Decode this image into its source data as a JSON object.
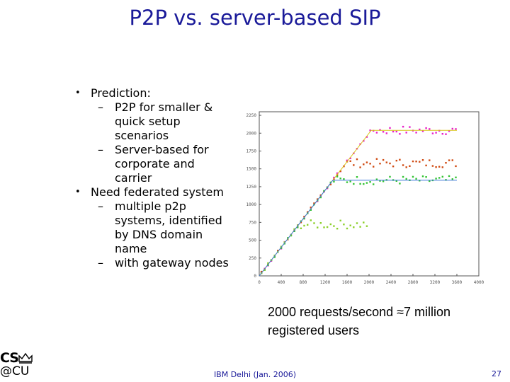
{
  "slide": {
    "title": "P2P vs. server-based SIP",
    "bullets": [
      {
        "text": "Prediction:",
        "subs": [
          "P2P for smaller & quick setup scenarios",
          "Server-based for corporate and carrier"
        ]
      },
      {
        "text": "Need federated system",
        "subs": [
          "multiple p2p systems, identified by DNS domain name",
          "with gateway nodes"
        ]
      }
    ],
    "bullet_glyph": "•",
    "dash_glyph": "–",
    "caption_line1": "2000 requests/second ≈7 million",
    "caption_line2": "registered users",
    "footer": "IBM Delhi (Jan. 2006)",
    "page_number": "27",
    "logo": {
      "line1": "CS",
      "line2": "@CU"
    }
  },
  "chart_data": {
    "type": "scatter",
    "title": "",
    "xlabel": "",
    "ylabel": "",
    "xlim": [
      0,
      4000
    ],
    "ylim": [
      0,
      2300
    ],
    "xticks": [
      "0",
      "400",
      "800",
      "1200",
      "1600",
      "2000",
      "2400",
      "2800",
      "3200",
      "3600",
      "4000"
    ],
    "yticks": [
      "0",
      "250",
      "500",
      "750",
      "1000",
      "1250",
      "1500",
      "1750",
      "2000",
      "2250"
    ],
    "series": [
      {
        "color": "#e81fc8",
        "cap": 2040,
        "kind": "plateau"
      },
      {
        "color": "#d04a12",
        "cap": 1580,
        "kind": "plateau"
      },
      {
        "color": "#36c436",
        "cap": 1340,
        "kind": "plateau"
      },
      {
        "color": "#8cd02a",
        "cap": 720,
        "kind": "plateau"
      },
      {
        "color": "#d9c51a",
        "cap": 2040,
        "kind": "line"
      },
      {
        "color": "#3a77d8",
        "cap": 1340,
        "kind": "line"
      }
    ]
  }
}
